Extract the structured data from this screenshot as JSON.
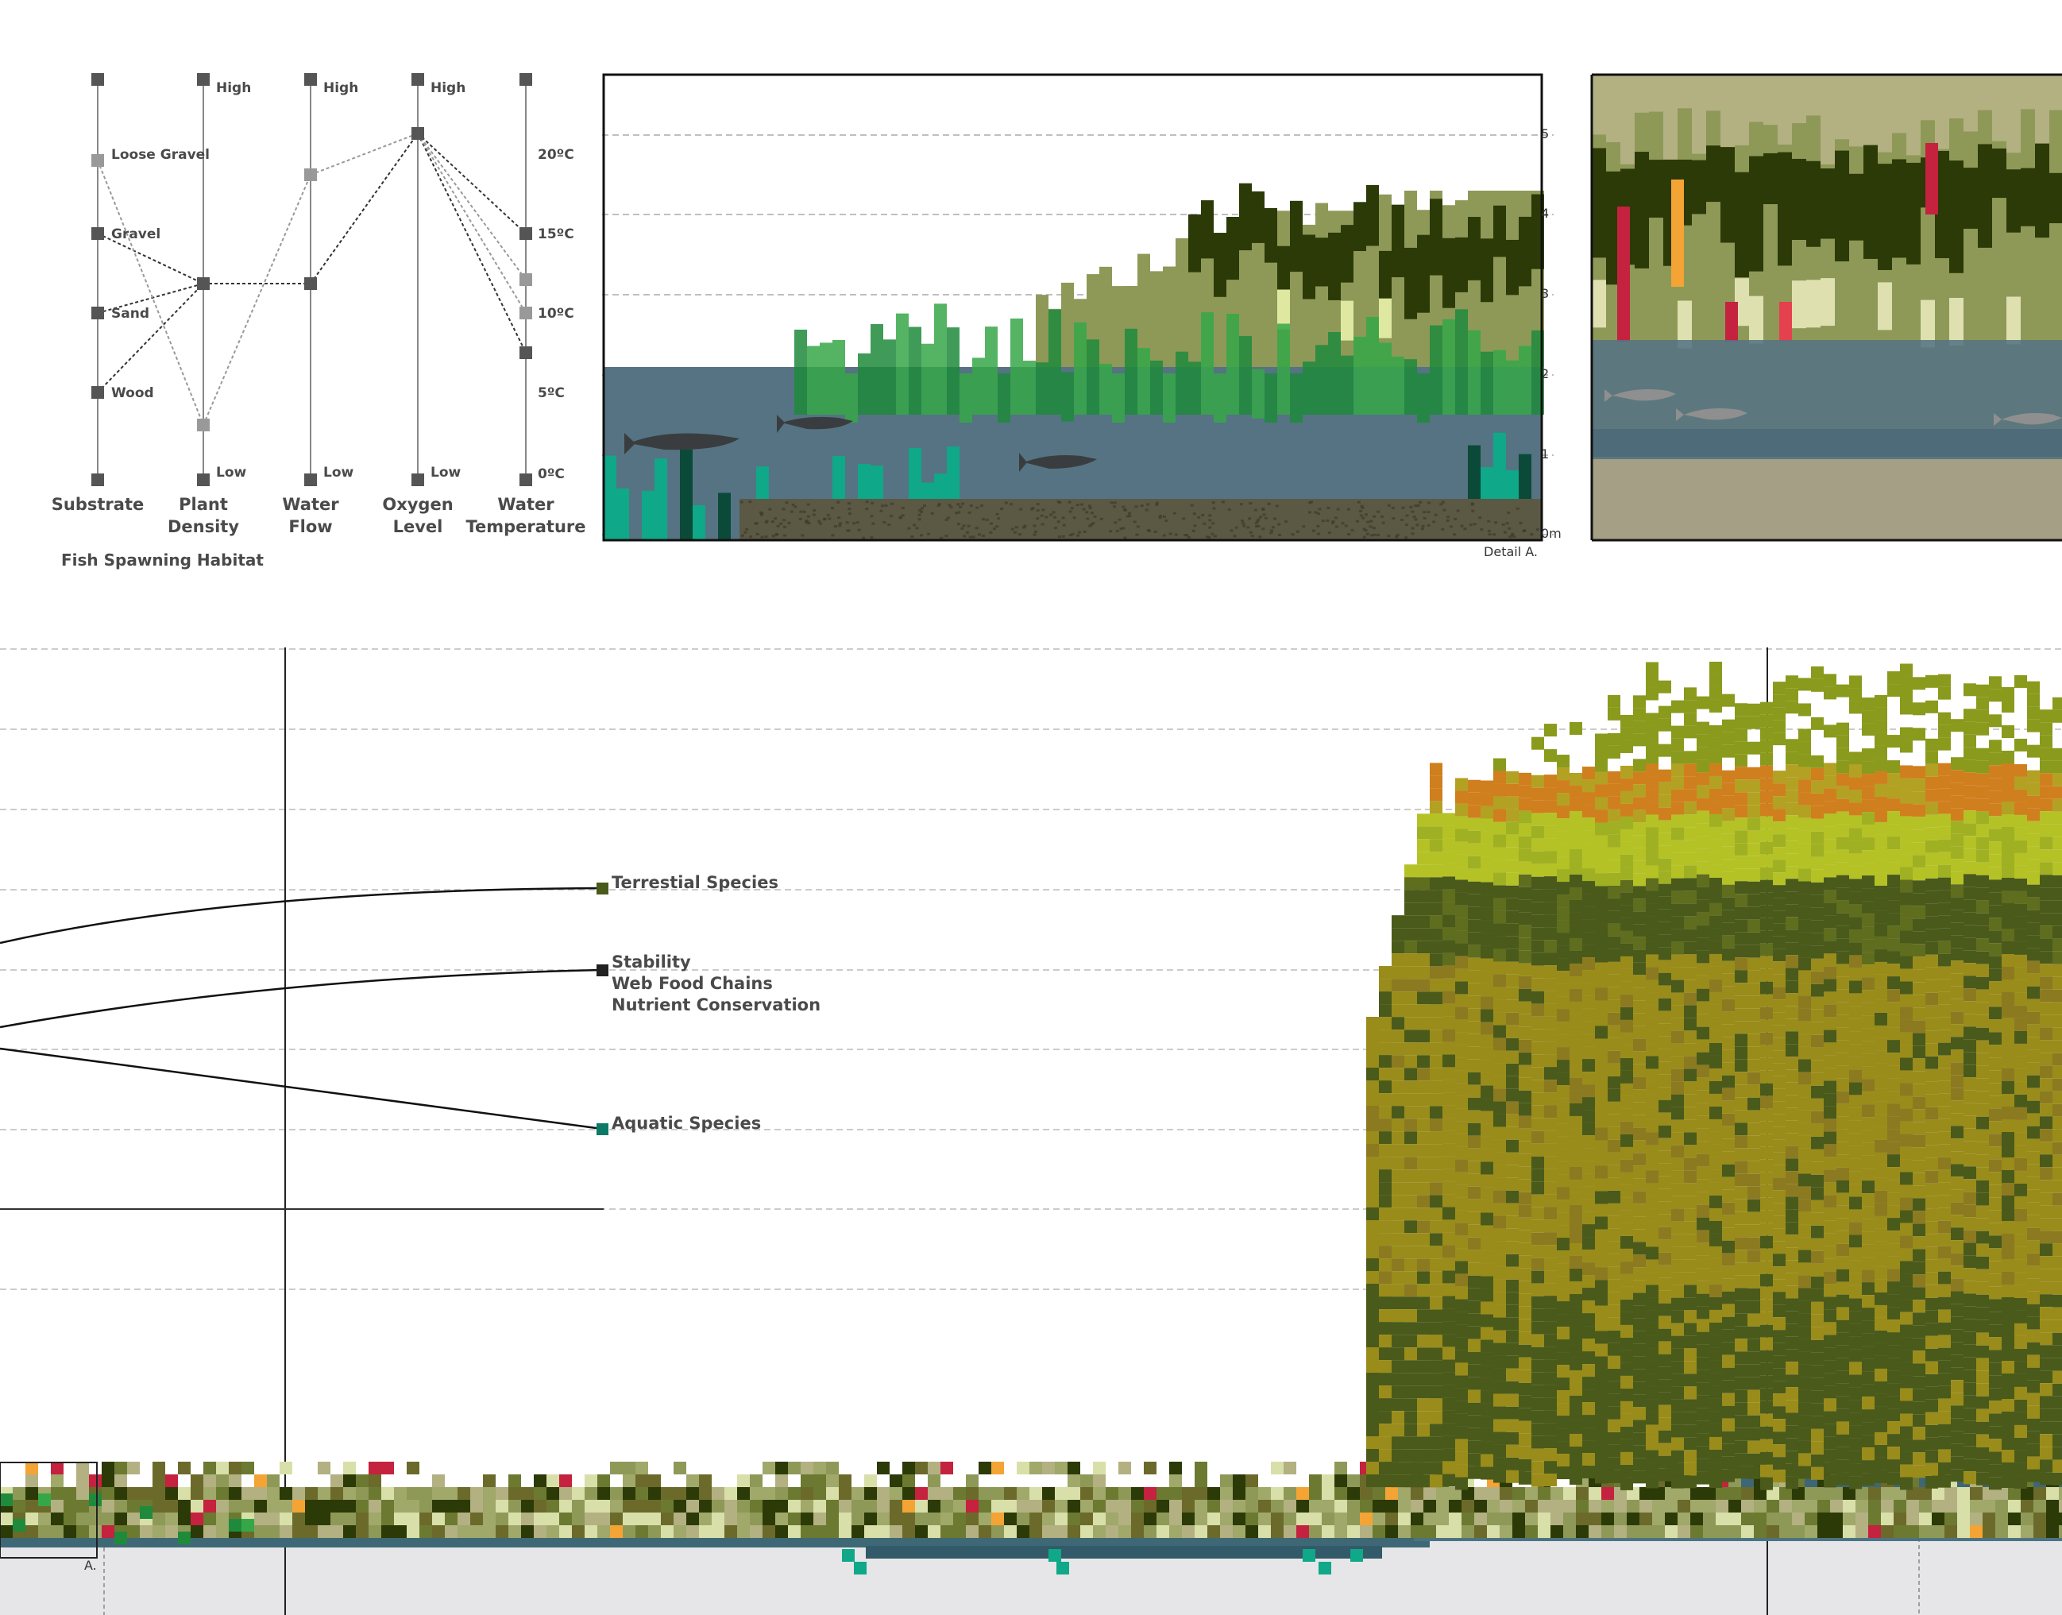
{
  "parallel_chart": {
    "title": "Fish Spawning Habitat",
    "axes": [
      {
        "label": [
          "Substrate"
        ],
        "ticks": [
          "Loose Gravel",
          "Gravel",
          "Sand",
          "Wood"
        ]
      },
      {
        "label": [
          "Plant",
          "Density"
        ],
        "high": "High",
        "low": "Low"
      },
      {
        "label": [
          "Water",
          "Flow"
        ],
        "high": "High",
        "low": "Low"
      },
      {
        "label": [
          "Oxygen",
          "Level"
        ],
        "high": "High",
        "low": "Low"
      },
      {
        "label": [
          "Water",
          "Temperature"
        ],
        "ticks": [
          "20ºC",
          "15ºC",
          "10ºC",
          "5ºC",
          "0ºC"
        ]
      }
    ]
  },
  "detail_a": {
    "caption": "Detail A.",
    "depth_ticks": [
      "5",
      "4",
      "3",
      "2",
      "1",
      "0m"
    ]
  },
  "section": {
    "marker_label": "A.",
    "callouts": {
      "terrestrial": "Terrestial Species",
      "stability": [
        "Stability",
        "Web Food Chains",
        "Nutrient Conservation"
      ],
      "aquatic": "Aquatic Species"
    }
  },
  "colors": {
    "water": "#557383",
    "soil": "#5b5844",
    "dark_reed": "#2b3a07",
    "olive_reed": "#8e9958",
    "green_reed": "#36a748",
    "teal": "#0fa889",
    "canopy_dark": "#4a5a1a",
    "canopy_gold": "#9a8c1a",
    "canopy_lime": "#b4c226",
    "canopy_orange": "#d07f1e",
    "accent_red": "#c4223f",
    "accent_orange": "#f4a434",
    "ground": "#e6e6e8"
  }
}
